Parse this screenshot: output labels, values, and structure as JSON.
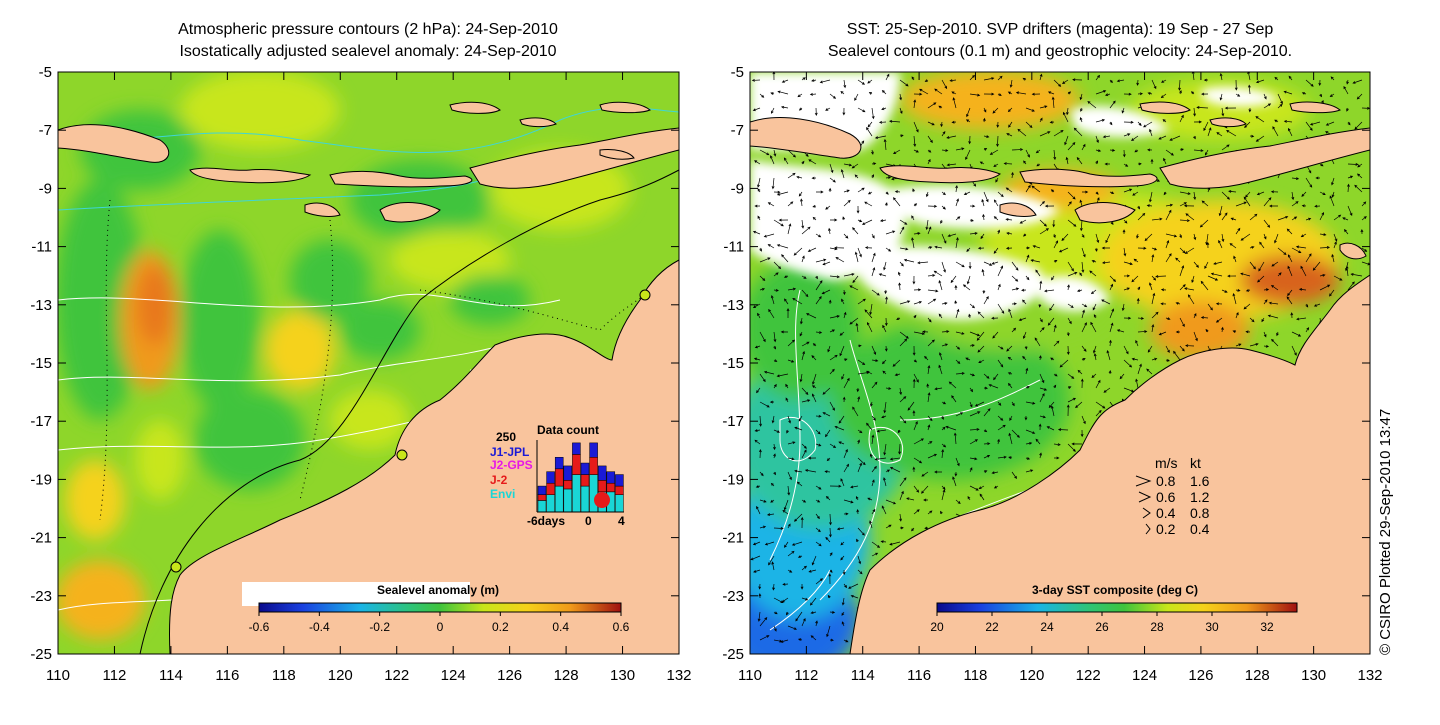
{
  "colors": {
    "land": "#f9c49d",
    "coast": "#000000",
    "ocean_green": "#3fc43d",
    "ocean_yellow": "#c8e61a",
    "ocean_orange": "#f09a1a",
    "white_contour": "#ffffff",
    "cyan_contour": "#3fd6d6",
    "jpl": "#1a1ad6",
    "gps": "#e61ae6",
    "j2": "#e61a1a",
    "envi": "#1ad6d6"
  },
  "left_panel": {
    "title_line1": "Atmospheric pressure contours (2 hPa): 24-Sep-2010",
    "title_line2": "Isostatically adjusted sealevel anomaly: 24-Sep-2010",
    "colorbar": {
      "title": "Sealevel anomaly (m)",
      "ticks": [
        "-0.6",
        "-0.4",
        "-0.2",
        "0",
        "0.2",
        "0.4",
        "0.6"
      ]
    },
    "data_count": {
      "title": "Data count",
      "ymax_label": "250",
      "legend": [
        "J1-JPL",
        "J2-GPS",
        "J-2",
        "Envi"
      ],
      "x_labels": [
        "-6days",
        "0",
        "4"
      ],
      "bars": [
        {
          "envi": 40,
          "j2": 20,
          "gps": 0,
          "jpl": 30
        },
        {
          "envi": 60,
          "j2": 40,
          "gps": 0,
          "jpl": 40
        },
        {
          "envi": 90,
          "j2": 60,
          "gps": 0,
          "jpl": 40
        },
        {
          "envi": 80,
          "j2": 30,
          "gps": 0,
          "jpl": 50
        },
        {
          "envi": 130,
          "j2": 70,
          "gps": 0,
          "jpl": 40
        },
        {
          "envi": 90,
          "j2": 40,
          "gps": 0,
          "jpl": 40
        },
        {
          "envi": 130,
          "j2": 60,
          "gps": 0,
          "jpl": 50
        },
        {
          "envi": 70,
          "j2": 40,
          "gps": 0,
          "jpl": 50
        },
        {
          "envi": 70,
          "j2": 30,
          "gps": 0,
          "jpl": 40
        },
        {
          "envi": 60,
          "j2": 30,
          "gps": 0,
          "jpl": 40
        }
      ]
    }
  },
  "right_panel": {
    "title_line1": "SST: 25-Sep-2010. SVP drifters (magenta): 19 Sep - 27 Sep",
    "title_line2": "Sealevel contours (0.1 m) and geostrophic velocity: 24-Sep-2010.",
    "colorbar": {
      "title": "3-day SST composite (deg C)",
      "ticks": [
        "20",
        "22",
        "24",
        "26",
        "28",
        "30",
        "32"
      ]
    },
    "speed_legend": {
      "header_ms": "m/s",
      "header_kt": "kt",
      "rows": [
        {
          "ms": "0.8",
          "kt": "1.6"
        },
        {
          "ms": "0.6",
          "kt": "1.2"
        },
        {
          "ms": "0.4",
          "kt": "0.8"
        },
        {
          "ms": "0.2",
          "kt": "0.4"
        }
      ]
    }
  },
  "credit": "© CSIRO Plotted 29-Sep-2010 13:47",
  "chart_data": [
    {
      "type": "heatmap",
      "title": "Atmospheric pressure contours (2 hPa): 24-Sep-2010 / Isostatically adjusted sealevel anomaly: 24-Sep-2010",
      "x_ticks": [
        "110",
        "112",
        "114",
        "116",
        "118",
        "120",
        "122",
        "124",
        "126",
        "128",
        "130",
        "132"
      ],
      "y_ticks": [
        "-5",
        "-7",
        "-9",
        "-11",
        "-13",
        "-15",
        "-17",
        "-19",
        "-21",
        "-23",
        "-25"
      ],
      "xlim": [
        110,
        132
      ],
      "ylim": [
        -25,
        -5
      ],
      "colorbar_label": "Sealevel anomaly (m)",
      "colorbar_range": [
        -0.6,
        0.6
      ],
      "anomaly_features": [
        {
          "lon": 113.5,
          "lat": -13.5,
          "value": 0.35
        },
        {
          "lon": 113.0,
          "lat": -12.5,
          "value": 0.3
        },
        {
          "lon": 111.5,
          "lat": -23.5,
          "value": 0.25
        },
        {
          "lon": 111.0,
          "lat": -20.5,
          "value": 0.2
        },
        {
          "lon": 115.0,
          "lat": -21.5,
          "value": 0.15
        },
        {
          "lon": 118.5,
          "lat": -14.5,
          "value": 0.2
        },
        {
          "lon": 114.5,
          "lat": -17.5,
          "value": 0.2
        },
        {
          "lon": 122.5,
          "lat": -8.5,
          "value": 0.15
        }
      ]
    },
    {
      "type": "heatmap",
      "title": "SST: 25-Sep-2010. SVP drifters (magenta): 19 Sep - 27 Sep / Sealevel contours (0.1 m) and geostrophic velocity: 24-Sep-2010.",
      "x_ticks": [
        "110",
        "112",
        "114",
        "116",
        "118",
        "120",
        "122",
        "124",
        "126",
        "128",
        "130",
        "132"
      ],
      "y_ticks": [
        "-5",
        "-7",
        "-9",
        "-11",
        "-13",
        "-15",
        "-17",
        "-19",
        "-21",
        "-23",
        "-25"
      ],
      "xlim": [
        110,
        132
      ],
      "ylim": [
        -25,
        -5
      ],
      "colorbar_label": "3-day SST composite (deg C)",
      "colorbar_range": [
        20,
        33.5
      ],
      "sst_features": [
        {
          "lon": 111.0,
          "lat": -24.5,
          "value": 21
        },
        {
          "lon": 112.0,
          "lat": -22.0,
          "value": 23
        },
        {
          "lon": 113.0,
          "lat": -18.0,
          "value": 25
        },
        {
          "lon": 114.0,
          "lat": -14.5,
          "value": 27
        },
        {
          "lon": 119.0,
          "lat": -16.5,
          "value": 27
        },
        {
          "lon": 120.0,
          "lat": -13.0,
          "value": 28.5
        },
        {
          "lon": 126.0,
          "lat": -10.0,
          "value": 29.5
        },
        {
          "lon": 129.5,
          "lat": -12.2,
          "value": 31.5
        },
        {
          "lon": 128.0,
          "lat": -13.5,
          "value": 30.5
        }
      ]
    },
    {
      "type": "bar",
      "title": "Data count",
      "categories": [
        "-6",
        "-5",
        "-4",
        "-3",
        "-2",
        "-1",
        "0",
        "1",
        "2",
        "3"
      ],
      "series": [
        {
          "name": "Envi",
          "values": [
            40,
            60,
            90,
            80,
            130,
            90,
            130,
            70,
            70,
            60
          ]
        },
        {
          "name": "J-2",
          "values": [
            20,
            40,
            60,
            30,
            70,
            40,
            60,
            40,
            30,
            30
          ]
        },
        {
          "name": "J2-GPS",
          "values": [
            0,
            0,
            0,
            0,
            0,
            0,
            0,
            0,
            0,
            0
          ]
        },
        {
          "name": "J1-JPL",
          "values": [
            30,
            40,
            40,
            50,
            40,
            40,
            50,
            50,
            40,
            40
          ]
        }
      ],
      "ylim": [
        0,
        250
      ]
    }
  ]
}
